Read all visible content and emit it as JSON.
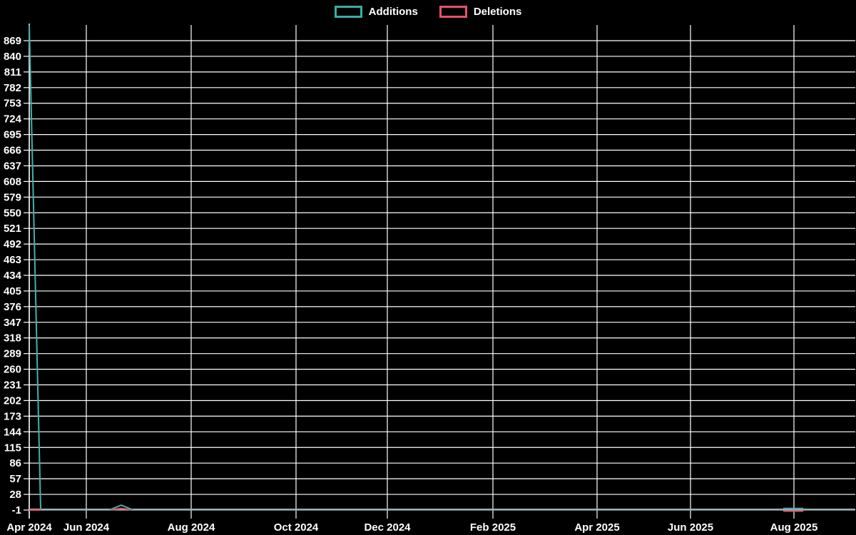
{
  "chart_data": {
    "type": "line",
    "title": "",
    "legend_position": "top-center",
    "legend": [
      {
        "label": "Additions",
        "color": "#3aaca6"
      },
      {
        "label": "Deletions",
        "color": "#e85069"
      }
    ],
    "colors": {
      "background": "#000000",
      "grid": "#ffffff",
      "text": "#ffffff",
      "baseline": "#9ab0bc",
      "additions": "#45b0aa",
      "deletions": "#e85069"
    },
    "y_axis": {
      "min": -1,
      "max": 898,
      "tick_step": 29,
      "ticks": [
        869,
        840,
        811,
        782,
        753,
        724,
        695,
        666,
        637,
        608,
        579,
        550,
        521,
        492,
        463,
        434,
        405,
        376,
        347,
        318,
        289,
        260,
        231,
        202,
        173,
        144,
        115,
        86,
        57,
        28,
        -1
      ]
    },
    "x_axis": {
      "ticks": [
        {
          "label": "Apr 2024",
          "px": 41
        },
        {
          "label": "Jun 2024",
          "px": 121
        },
        {
          "label": "Aug 2024",
          "px": 268
        },
        {
          "label": "Oct 2024",
          "px": 415
        },
        {
          "label": "Dec 2024",
          "px": 543
        },
        {
          "label": "Feb 2025",
          "px": 691
        },
        {
          "label": "Apr 2025",
          "px": 837
        },
        {
          "label": "Jun 2025",
          "px": 968
        },
        {
          "label": "Aug 2025",
          "px": 1113
        }
      ]
    },
    "series": [
      {
        "name": "Additions",
        "color": "#45b0aa",
        "polylines": [
          [
            [
              41,
              898
            ],
            [
              57,
              0
            ]
          ],
          [
            [
              153,
              -1
            ],
            [
              170,
              8
            ],
            [
              187,
              -1
            ]
          ],
          [
            [
              1098,
              2
            ],
            [
              1126,
              2
            ]
          ]
        ]
      },
      {
        "name": "Deletions",
        "color": "#e85069",
        "polylines": [
          [
            [
              41,
              -1
            ],
            [
              58,
              -1
            ]
          ],
          [
            [
              153,
              -1
            ],
            [
              170,
              2
            ],
            [
              187,
              -1
            ]
          ],
          [
            [
              1098,
              -3
            ],
            [
              1126,
              -3
            ]
          ]
        ]
      }
    ]
  }
}
